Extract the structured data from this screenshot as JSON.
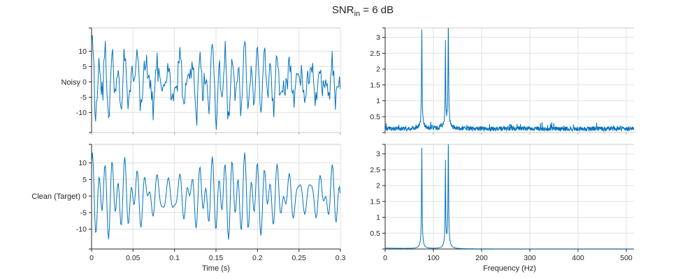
{
  "title": {
    "prefix": "SNR",
    "subscript": "in",
    "suffix": " = 6 dB"
  },
  "style": {
    "line_color": "#0072BD",
    "axis_color": "#262626",
    "grid_color": "#e0e0e0",
    "muted_axis_color": "#c9c9c9",
    "muted_tick_color": "#a6a6a6",
    "text_color": "#262626",
    "background": "#ffffff"
  },
  "chart_data": [
    {
      "id": "noisy-time",
      "type": "line",
      "ylabel": "Noisy",
      "xlabel": "",
      "xlim": [
        0,
        0.3
      ],
      "ylim": [
        -16.5,
        17.6
      ],
      "xticks": [
        0,
        0.05,
        0.1,
        0.15,
        0.2,
        0.25,
        0.3
      ],
      "xtick_labels": [],
      "yticks": [
        -10,
        -5,
        0,
        5,
        10
      ],
      "ytick_labels": [
        "-10",
        "-5",
        "0",
        "5",
        "10"
      ],
      "grid": true,
      "legend": null,
      "series_synthesis": {
        "kind": "time",
        "fs": 1024,
        "duration": 0.3,
        "seed": 9,
        "components": [
          {
            "freq": 76,
            "amp": 4.6,
            "phase": 1.35
          },
          {
            "freq": 125,
            "amp": 3.9,
            "phase": 0.9
          },
          {
            "freq": 131,
            "amp": 4.8,
            "phase": 0.6
          }
        ],
        "noise_std": 2.5
      }
    },
    {
      "id": "noisy-spectrum",
      "type": "line",
      "ylabel": "",
      "xlabel": "",
      "xlim": [
        0,
        516
      ],
      "ylim": [
        0,
        3.3
      ],
      "xticks": [
        0,
        100,
        200,
        300,
        400,
        500
      ],
      "xtick_labels": [],
      "yticks": [
        0.5,
        1,
        1.5,
        2,
        2.5,
        3
      ],
      "ytick_labels": [
        "0.5",
        "1",
        "1.5",
        "2",
        "2.5",
        "3"
      ],
      "grid": true,
      "legend": null,
      "series_synthesis": {
        "kind": "spectrum",
        "fmax": 516,
        "df": 0.5,
        "seed": 23,
        "peaks": [
          {
            "freq": 76,
            "amp": 3.0,
            "width": 0.7
          },
          {
            "freq": 125,
            "amp": 2.45,
            "width": 0.6
          },
          {
            "freq": 131,
            "amp": 3.2,
            "width": 0.7
          }
        ],
        "skirt_gain": 0.05,
        "skirt_width": 5,
        "noise_floor_base": 0.05,
        "noise_rand": 0.14,
        "noise_spike": 0.18,
        "decay_amp": 0,
        "decay_scale": 1
      }
    },
    {
      "id": "clean-time",
      "type": "line",
      "ylabel": "Clean (Target)",
      "xlabel": "Time (s)",
      "xlim": [
        0,
        0.3
      ],
      "ylim": [
        -16,
        15.6
      ],
      "xticks": [
        0,
        0.05,
        0.1,
        0.15,
        0.2,
        0.25,
        0.3
      ],
      "xtick_labels": [
        "0",
        "0.05",
        "0.1",
        "0.15",
        "0.2",
        "0.25",
        "0.3"
      ],
      "yticks": [
        -10,
        -5,
        0,
        5,
        10
      ],
      "ytick_labels": [
        "-10",
        "-5",
        "0",
        "5",
        "10"
      ],
      "grid": true,
      "legend": null,
      "series_synthesis": {
        "kind": "time",
        "fs": 1024,
        "duration": 0.3,
        "seed": 9,
        "components": [
          {
            "freq": 76,
            "amp": 4.6,
            "phase": 1.35
          },
          {
            "freq": 125,
            "amp": 3.9,
            "phase": 0.9
          },
          {
            "freq": 131,
            "amp": 4.8,
            "phase": 0.6
          }
        ],
        "noise_std": 0
      }
    },
    {
      "id": "clean-spectrum",
      "type": "line",
      "ylabel": "",
      "xlabel": "Frequency (Hz)",
      "xlim": [
        0,
        516
      ],
      "ylim": [
        0,
        3.3
      ],
      "xticks": [
        0,
        100,
        200,
        300,
        400,
        500
      ],
      "xtick_labels": [
        "0",
        "100",
        "200",
        "300",
        "400",
        "500"
      ],
      "yticks": [
        0.5,
        1,
        1.5,
        2,
        2.5,
        3
      ],
      "ytick_labels": [
        "0.5",
        "1",
        "1.5",
        "2",
        "2.5",
        "3"
      ],
      "grid": true,
      "legend": null,
      "series_synthesis": {
        "kind": "spectrum",
        "fmax": 516,
        "df": 0.5,
        "seed": 5,
        "peaks": [
          {
            "freq": 76,
            "amp": 3.0,
            "width": 0.7
          },
          {
            "freq": 125,
            "amp": 2.55,
            "width": 0.6
          },
          {
            "freq": 131,
            "amp": 3.17,
            "width": 0.7
          }
        ],
        "skirt_gain": 0.06,
        "skirt_width": 4,
        "noise_floor_base": 0.002,
        "noise_rand": 0,
        "noise_spike": 0,
        "decay_amp": 0.025,
        "decay_scale": 70
      }
    }
  ]
}
